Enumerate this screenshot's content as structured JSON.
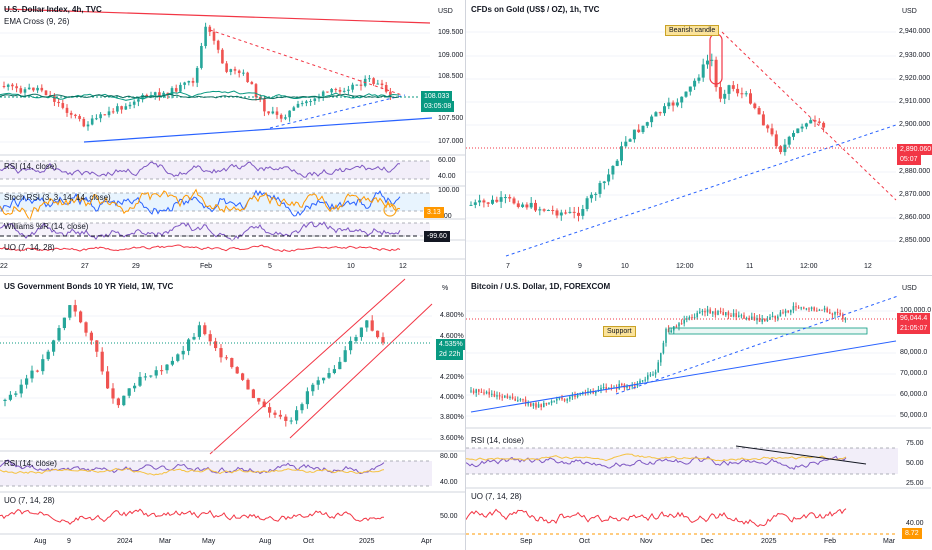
{
  "colors": {
    "up": "#26a69a",
    "down": "#ef5350",
    "blue": "#2962ff",
    "red": "#f23645",
    "rsi": "#7e57c2",
    "green": "#089981",
    "grid": "#e0e3eb"
  },
  "dxy": {
    "title": "U.S. Dollar Index, 4h, TVC",
    "sub": "EMA Cross (9, 26)",
    "currency": "USD",
    "price_label": "108.033",
    "countdown": "03:05:08",
    "yticks": [
      "109.500",
      "109.000",
      "108.500",
      "107.500",
      "107.000"
    ],
    "rsi_label": "RSI (14, close)",
    "rsi_ticks": [
      "60.00",
      "40.00"
    ],
    "stoch_label": "Stoch RSI (3, 3, 14, 14, close)",
    "stoch_ticks": [
      "100.00",
      "0.00"
    ],
    "stoch_value": "3.13",
    "wr_label": "Williams %R (14, close)",
    "wr_value": "-99.60",
    "uo_label": "UO (7, 14, 28)",
    "xticks": [
      "22",
      "27",
      "29",
      "Feb",
      "5",
      "10",
      "12"
    ]
  },
  "gold": {
    "title": "CFDs on Gold (US$ / OZ), 1h, TVC",
    "currency": "USD",
    "price_label": "2,890.060",
    "countdown": "05:07",
    "note": "Bearish candle",
    "yticks": [
      "2,940.000",
      "2,930.000",
      "2,920.000",
      "2,910.000",
      "2,900.000",
      "2,880.000",
      "2,870.000",
      "2,860.000",
      "2,850.000"
    ],
    "xticks": [
      "7",
      "9",
      "10",
      "12:00",
      "11",
      "12:00",
      "12"
    ]
  },
  "us10y": {
    "title": "US Government Bonds 10 YR Yield, 1W, TVC",
    "unit": "%",
    "price_label": "4.535%",
    "countdown": "2d 22h",
    "yticks": [
      "4.800%",
      "4.600%",
      "4.200%",
      "4.000%",
      "3.800%",
      "3.600%"
    ],
    "rsi_label": "RSI (14, close)",
    "rsi_ticks": [
      "80.00",
      "40.00"
    ],
    "uo_label": "UO (7, 14, 28)",
    "uo_ticks": [
      "50.00"
    ],
    "xticks": [
      "Aug",
      "9",
      "2024",
      "Mar",
      "May",
      "Aug",
      "Oct",
      "2025",
      "Apr"
    ]
  },
  "btc": {
    "title": "Bitcoin / U.S. Dollar, 1D, FOREXCOM",
    "currency": "USD",
    "price_label": "96,044.4",
    "countdown": "21:05:07",
    "note": "Support",
    "yticks": [
      "100,000.0",
      "80,000.0",
      "70,000.0",
      "60,000.0",
      "50,000.0"
    ],
    "rsi_label": "RSI (14, close)",
    "rsi_ticks": [
      "75.00",
      "50.00",
      "25.00"
    ],
    "uo_label": "UO (7, 14, 28)",
    "uo_ticks": [
      "40.00"
    ],
    "uo_value": "8.72",
    "xticks": [
      "Sep",
      "Oct",
      "Nov",
      "Dec",
      "2025",
      "Feb",
      "Mar"
    ]
  }
}
